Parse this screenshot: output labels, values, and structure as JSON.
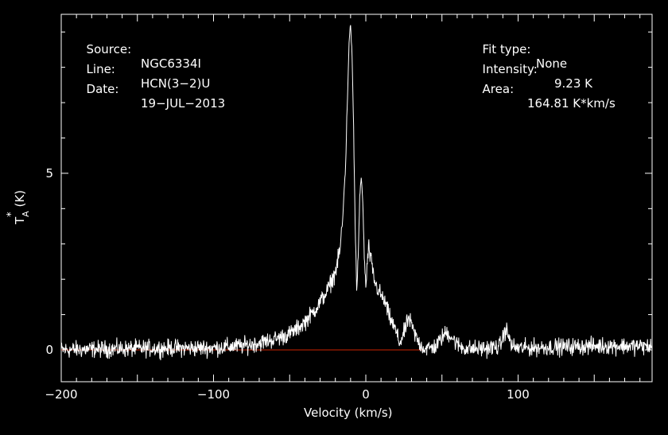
{
  "chart_data": {
    "type": "line",
    "header_left": [
      {
        "label": "Source:",
        "value": "NGC6334I"
      },
      {
        "label": "Line:",
        "value": "HCN(3−2)U"
      },
      {
        "label": "Date:",
        "value": "19−JUL−2013"
      }
    ],
    "header_right": [
      {
        "label": "Fit type:",
        "value": "None"
      },
      {
        "label": "Intensity:",
        "value": "9.23 K"
      },
      {
        "label": "Area:",
        "value": "164.81 K*km/s"
      }
    ],
    "xlabel": "Velocity (km/s)",
    "ylabel_main": "T",
    "ylabel_sup": "*",
    "ylabel_sub": "A",
    "ylabel_unit": "(K)",
    "xlim": [
      -200,
      188
    ],
    "ylim": [
      -0.9,
      9.5
    ],
    "xticks": [
      -200,
      -100,
      0,
      100
    ],
    "xtick_labels": [
      "−200",
      "−100",
      "0",
      "100"
    ],
    "yticks": [
      0,
      5
    ],
    "ytick_labels": [
      "0",
      "5"
    ],
    "baseline_y": 0,
    "baseline_x": [
      -200,
      38
    ],
    "line_color": "#ffffff",
    "baseline_color": "#cc2200",
    "noise_rms": 0.12,
    "series": [
      {
        "x": [
          -200,
          -180,
          -160,
          -140,
          -120,
          -100,
          -80,
          -70,
          -60,
          -50,
          -45,
          -40,
          -35,
          -30,
          -25,
          -20,
          -17,
          -15,
          -13,
          -12,
          -11,
          -10,
          -9,
          -8,
          -7,
          -6,
          -5,
          -4,
          -3,
          -2,
          -1,
          0,
          1,
          2,
          3,
          4,
          5,
          6,
          8,
          10,
          13,
          15,
          18,
          20,
          22,
          24,
          26,
          28,
          30,
          32,
          35,
          38,
          42,
          46,
          50,
          53,
          56,
          60,
          65,
          70,
          80,
          88,
          90,
          92,
          94,
          96,
          100,
          120,
          140,
          160,
          188
        ],
        "y": [
          0,
          0.02,
          0.03,
          0.05,
          0.05,
          0.06,
          0.12,
          0.2,
          0.3,
          0.45,
          0.6,
          0.8,
          1.05,
          1.35,
          1.7,
          2.2,
          2.8,
          3.8,
          5.6,
          7.2,
          8.7,
          9.23,
          8.3,
          6.2,
          3.6,
          1.7,
          2.6,
          4.3,
          4.9,
          4.2,
          2.7,
          1.7,
          2.5,
          2.9,
          2.6,
          2.4,
          2.1,
          1.9,
          1.7,
          1.55,
          1.3,
          1.0,
          0.7,
          0.5,
          0.2,
          0.35,
          0.6,
          0.9,
          0.7,
          0.45,
          0.2,
          0.05,
          0.05,
          0.1,
          0.35,
          0.5,
          0.4,
          0.15,
          0.05,
          0.03,
          0.05,
          0.1,
          0.35,
          0.6,
          0.35,
          0.1,
          0.05,
          0.08,
          0.1,
          0.12,
          0.1
        ]
      }
    ]
  }
}
